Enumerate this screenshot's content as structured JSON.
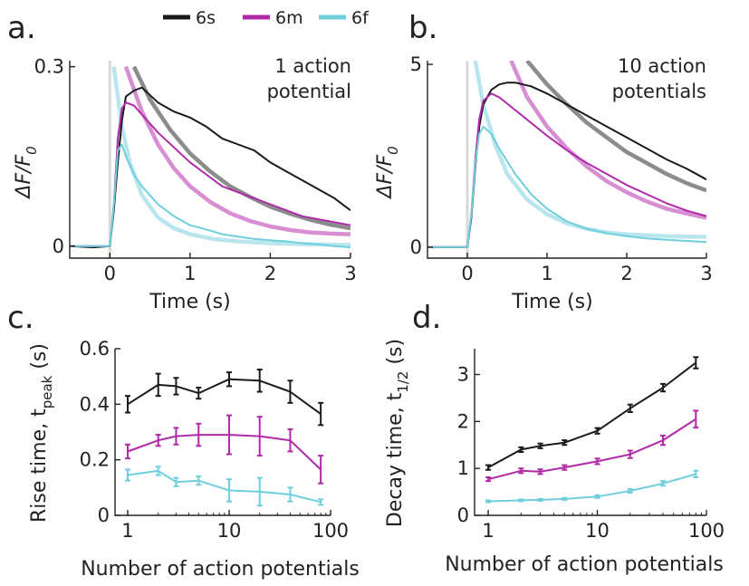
{
  "colors": {
    "6s": "#1a1a1a",
    "6m": "#b02aa8",
    "6f": "#6fcfdc",
    "fit_6s": "#8c8c8c",
    "fit_6m": "#d88ed3",
    "fit_6f": "#b9e6ee",
    "stim": "#d9d9d9"
  },
  "legend": [
    {
      "name": "6s",
      "color": "#1a1a1a"
    },
    {
      "name": "6m",
      "color": "#b02aa8"
    },
    {
      "name": "6f",
      "color": "#6fcfdc"
    }
  ],
  "chart_data": [
    {
      "panel": "a.",
      "type": "line",
      "annotation": [
        "1 action",
        "potential"
      ],
      "xlabel": "Time (s)",
      "ylabel_main": "ΔF/F",
      "ylabel_sub": "0",
      "xlim": [
        -0.5,
        3
      ],
      "ylim": [
        -0.02,
        0.31
      ],
      "xticks": [
        0,
        1,
        2,
        3
      ],
      "yticks": [
        0,
        0.3
      ],
      "ytick_labels": [
        "0",
        "0.3"
      ],
      "series": [
        {
          "key": "6s",
          "x": [
            -0.5,
            -0.2,
            0.0,
            0.05,
            0.1,
            0.15,
            0.2,
            0.3,
            0.4,
            0.6,
            0.8,
            1.0,
            1.2,
            1.4,
            1.6,
            1.8,
            2.0,
            2.2,
            2.4,
            2.6,
            2.8,
            3.0
          ],
          "y": [
            0.0,
            -0.002,
            0.0,
            0.06,
            0.14,
            0.21,
            0.25,
            0.26,
            0.265,
            0.24,
            0.225,
            0.215,
            0.2,
            0.18,
            0.17,
            0.16,
            0.14,
            0.125,
            0.11,
            0.095,
            0.08,
            0.06
          ]
        },
        {
          "key": "6m",
          "x": [
            -0.5,
            -0.2,
            0.0,
            0.05,
            0.1,
            0.15,
            0.2,
            0.3,
            0.4,
            0.6,
            0.8,
            1.0,
            1.2,
            1.4,
            1.6,
            1.8,
            2.0,
            2.2,
            2.4,
            2.6,
            2.8,
            3.0
          ],
          "y": [
            0.0,
            0.0,
            0.0,
            0.07,
            0.18,
            0.23,
            0.24,
            0.235,
            0.22,
            0.19,
            0.165,
            0.14,
            0.12,
            0.1,
            0.09,
            0.08,
            0.07,
            0.06,
            0.05,
            0.045,
            0.04,
            0.035
          ]
        },
        {
          "key": "6f",
          "x": [
            -0.5,
            -0.2,
            0.0,
            0.05,
            0.1,
            0.15,
            0.2,
            0.3,
            0.4,
            0.6,
            0.8,
            1.0,
            1.2,
            1.4,
            1.6,
            1.8,
            2.0,
            2.2,
            2.4,
            2.6,
            2.8,
            3.0
          ],
          "y": [
            0.0,
            0.0,
            0.0,
            0.07,
            0.16,
            0.17,
            0.15,
            0.12,
            0.1,
            0.07,
            0.05,
            0.035,
            0.028,
            0.02,
            0.016,
            0.012,
            0.01,
            0.008,
            0.005,
            0.003,
            0.0,
            -0.002
          ]
        },
        {
          "key": "fit_6s",
          "x": [
            0.3,
            0.5,
            0.75,
            1.0,
            1.25,
            1.5,
            1.75,
            2.0,
            2.25,
            2.5,
            2.75,
            3.0
          ],
          "y": [
            0.3,
            0.245,
            0.195,
            0.155,
            0.125,
            0.1,
            0.082,
            0.066,
            0.054,
            0.044,
            0.036,
            0.03
          ]
        },
        {
          "key": "fit_6m",
          "x": [
            0.2,
            0.4,
            0.6,
            0.8,
            1.0,
            1.25,
            1.5,
            1.75,
            2.0,
            2.25,
            2.5,
            2.75,
            3.0
          ],
          "y": [
            0.3,
            0.225,
            0.17,
            0.13,
            0.1,
            0.074,
            0.055,
            0.042,
            0.033,
            0.027,
            0.023,
            0.021,
            0.02
          ]
        },
        {
          "key": "fit_6f",
          "x": [
            0.05,
            0.15,
            0.25,
            0.4,
            0.6,
            0.8,
            1.0,
            1.3,
            1.6,
            2.0,
            2.5,
            3.0
          ],
          "y": [
            0.3,
            0.2,
            0.14,
            0.085,
            0.048,
            0.03,
            0.02,
            0.012,
            0.008,
            0.005,
            0.003,
            0.002
          ]
        }
      ]
    },
    {
      "panel": "b.",
      "type": "line",
      "annotation": [
        "10 action",
        "potentials"
      ],
      "xlabel": "Time (s)",
      "ylabel_main": "ΔF/F",
      "ylabel_sub": "0",
      "xlim": [
        -0.5,
        3
      ],
      "ylim": [
        -0.3,
        5.1
      ],
      "xticks": [
        0,
        1,
        2,
        3
      ],
      "yticks": [
        0,
        5
      ],
      "ytick_labels": [
        "0",
        "5"
      ],
      "series": [
        {
          "key": "6s",
          "x": [
            -0.5,
            0.0,
            0.05,
            0.1,
            0.15,
            0.2,
            0.3,
            0.4,
            0.5,
            0.6,
            0.8,
            1.0,
            1.25,
            1.5,
            1.75,
            2.0,
            2.25,
            2.5,
            2.75,
            3.0
          ],
          "y": [
            0.0,
            0.0,
            0.8,
            2.2,
            3.3,
            3.9,
            4.3,
            4.45,
            4.5,
            4.5,
            4.4,
            4.2,
            3.9,
            3.6,
            3.3,
            3.0,
            2.7,
            2.4,
            2.15,
            1.85
          ]
        },
        {
          "key": "6m",
          "x": [
            -0.5,
            0.0,
            0.05,
            0.1,
            0.15,
            0.2,
            0.3,
            0.4,
            0.6,
            0.8,
            1.0,
            1.25,
            1.5,
            1.75,
            2.0,
            2.25,
            2.5,
            2.75,
            3.0
          ],
          "y": [
            0.0,
            0.0,
            0.9,
            2.4,
            3.5,
            4.0,
            4.2,
            4.1,
            3.75,
            3.4,
            3.05,
            2.65,
            2.3,
            2.0,
            1.7,
            1.45,
            1.2,
            1.0,
            0.85
          ]
        },
        {
          "key": "6f",
          "x": [
            -0.5,
            0.0,
            0.05,
            0.1,
            0.15,
            0.2,
            0.3,
            0.4,
            0.6,
            0.8,
            1.0,
            1.25,
            1.5,
            1.75,
            2.0,
            2.25,
            2.5,
            2.75,
            3.0
          ],
          "y": [
            0.0,
            0.0,
            0.9,
            2.3,
            3.1,
            3.3,
            3.1,
            2.7,
            2.0,
            1.45,
            1.05,
            0.7,
            0.5,
            0.38,
            0.3,
            0.24,
            0.2,
            0.17,
            0.14
          ]
        },
        {
          "key": "fit_6s",
          "x": [
            0.75,
            1.0,
            1.25,
            1.5,
            1.75,
            2.0,
            2.25,
            2.5,
            2.75,
            3.0
          ],
          "y": [
            5.1,
            4.45,
            3.9,
            3.4,
            3.0,
            2.6,
            2.3,
            2.0,
            1.75,
            1.55
          ]
        },
        {
          "key": "fit_6m",
          "x": [
            0.55,
            0.75,
            1.0,
            1.25,
            1.5,
            1.75,
            2.0,
            2.25,
            2.5,
            2.75,
            3.0
          ],
          "y": [
            5.1,
            4.1,
            3.3,
            2.7,
            2.2,
            1.8,
            1.5,
            1.25,
            1.05,
            0.92,
            0.8
          ]
        },
        {
          "key": "fit_6f",
          "x": [
            0.1,
            0.2,
            0.35,
            0.5,
            0.75,
            1.0,
            1.25,
            1.5,
            1.75,
            2.0,
            2.5,
            3.0
          ],
          "y": [
            5.1,
            3.9,
            2.8,
            2.0,
            1.3,
            0.9,
            0.65,
            0.5,
            0.4,
            0.35,
            0.3,
            0.28
          ]
        }
      ]
    },
    {
      "panel": "c.",
      "type": "line",
      "xscale": "log",
      "xlabel": "Number of action potentials",
      "ylabel_main": "Rise time, t",
      "ylabel_sub": "peak",
      "ylabel_tail": " (s)",
      "xlim": [
        0.75,
        100
      ],
      "ylim": [
        0,
        0.6
      ],
      "xticks": [
        1,
        10,
        100
      ],
      "xtick_labels": [
        "1",
        "10",
        "100"
      ],
      "yticks": [
        0,
        0.2,
        0.4,
        0.6
      ],
      "ytick_labels": [
        "0",
        "0.2",
        "0.4",
        "0.6"
      ],
      "series": [
        {
          "key": "6s",
          "x": [
            1,
            2,
            3,
            5,
            10,
            20,
            40,
            80
          ],
          "y": [
            0.4,
            0.47,
            0.465,
            0.44,
            0.49,
            0.485,
            0.445,
            0.365
          ],
          "err": [
            0.03,
            0.04,
            0.03,
            0.02,
            0.025,
            0.04,
            0.04,
            0.04
          ]
        },
        {
          "key": "6m",
          "x": [
            1,
            2,
            3,
            5,
            10,
            20,
            40,
            80
          ],
          "y": [
            0.23,
            0.27,
            0.285,
            0.29,
            0.29,
            0.285,
            0.27,
            0.165
          ],
          "err": [
            0.025,
            0.02,
            0.03,
            0.04,
            0.07,
            0.07,
            0.04,
            0.05
          ]
        },
        {
          "key": "6f",
          "x": [
            1,
            2,
            3,
            5,
            10,
            20,
            40,
            80
          ],
          "y": [
            0.145,
            0.16,
            0.12,
            0.125,
            0.09,
            0.085,
            0.075,
            0.048
          ],
          "err": [
            0.02,
            0.015,
            0.015,
            0.015,
            0.04,
            0.05,
            0.025,
            0.01
          ]
        }
      ]
    },
    {
      "panel": "d.",
      "type": "line",
      "xscale": "log",
      "xlabel": "Number of action potentials",
      "ylabel_main": "Decay time, t",
      "ylabel_sub": "1/2",
      "ylabel_tail": " (s)",
      "xlim": [
        0.75,
        100
      ],
      "ylim": [
        0,
        3.55
      ],
      "xticks": [
        1,
        10,
        100
      ],
      "xtick_labels": [
        "1",
        "10",
        "100"
      ],
      "yticks": [
        0,
        1,
        2,
        3
      ],
      "ytick_labels": [
        "0",
        "1",
        "2",
        "3"
      ],
      "series": [
        {
          "key": "6s",
          "x": [
            1,
            2,
            3,
            5,
            10,
            20,
            40,
            80
          ],
          "y": [
            1.02,
            1.4,
            1.48,
            1.55,
            1.8,
            2.28,
            2.72,
            3.25
          ],
          "err": [
            0.05,
            0.05,
            0.05,
            0.05,
            0.06,
            0.08,
            0.08,
            0.12
          ]
        },
        {
          "key": "6m",
          "x": [
            1,
            2,
            3,
            5,
            10,
            20,
            40,
            80
          ],
          "y": [
            0.77,
            0.95,
            0.93,
            1.02,
            1.15,
            1.3,
            1.6,
            2.05
          ],
          "err": [
            0.04,
            0.05,
            0.05,
            0.05,
            0.06,
            0.08,
            0.1,
            0.18
          ]
        },
        {
          "key": "6f",
          "x": [
            1,
            2,
            3,
            5,
            10,
            20,
            40,
            80
          ],
          "y": [
            0.3,
            0.32,
            0.33,
            0.35,
            0.4,
            0.52,
            0.68,
            0.88
          ],
          "err": [
            0.02,
            0.02,
            0.02,
            0.02,
            0.03,
            0.04,
            0.05,
            0.07
          ]
        }
      ]
    }
  ]
}
